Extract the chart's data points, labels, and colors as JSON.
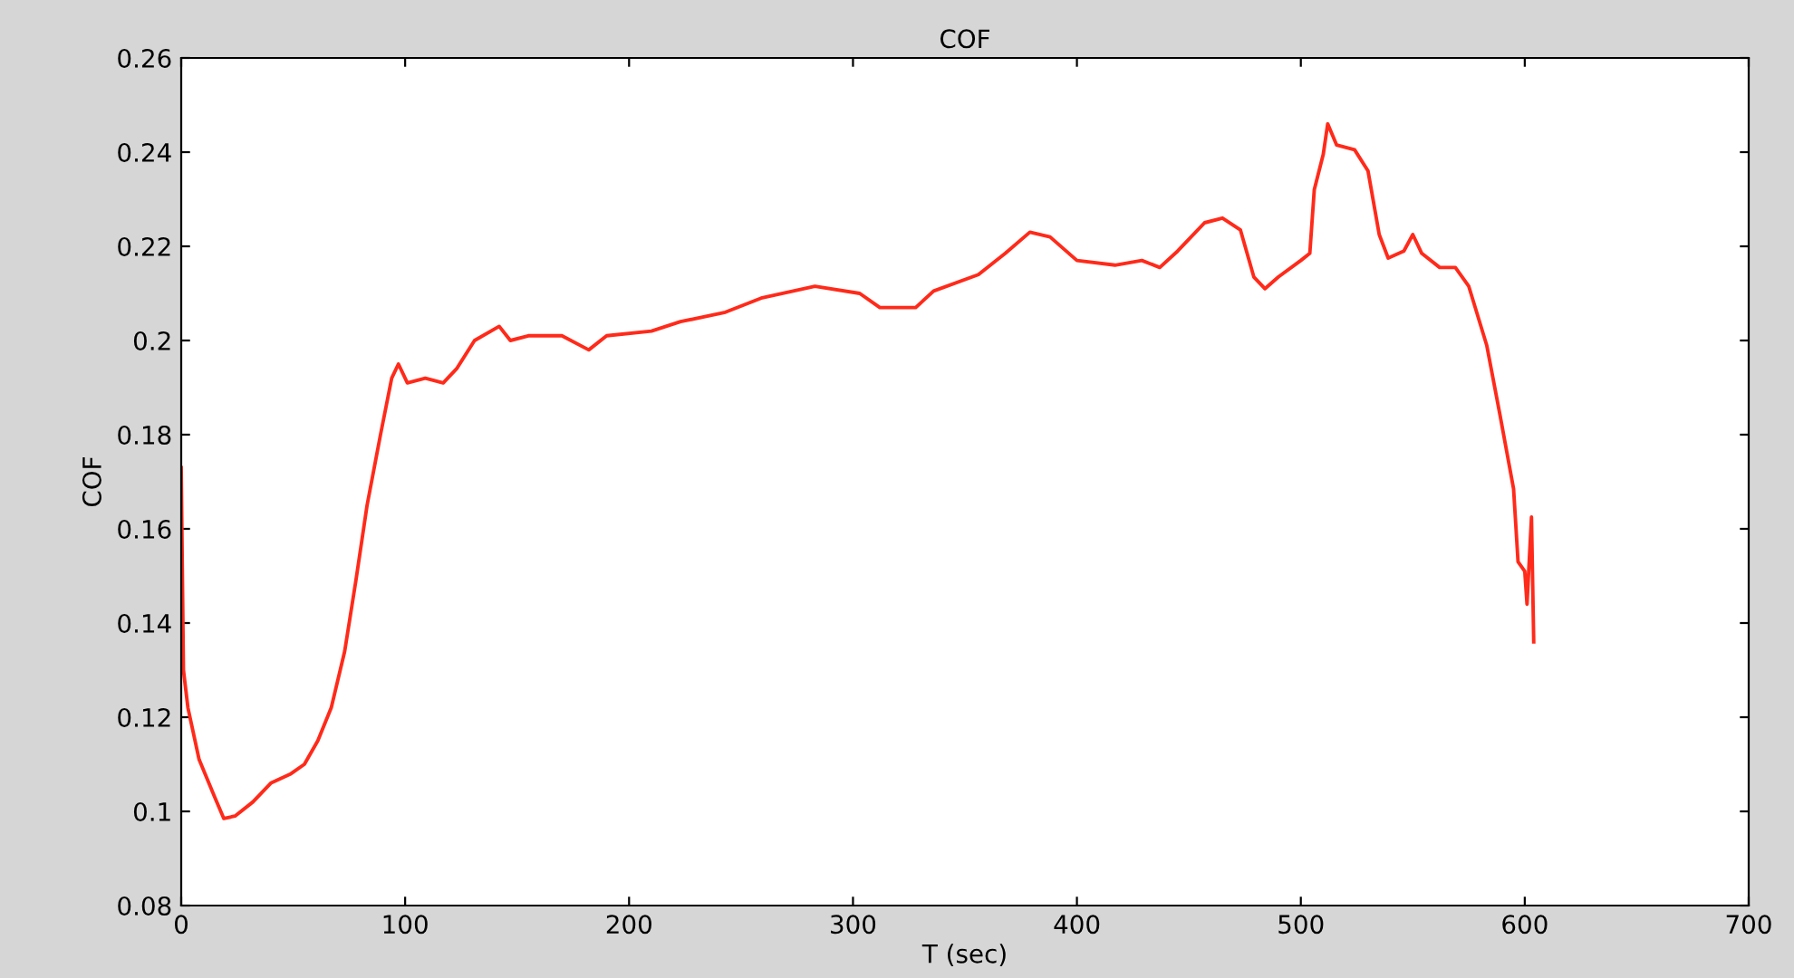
{
  "chart_data": {
    "type": "line",
    "title": "COF",
    "xlabel": "T (sec)",
    "ylabel": "COF",
    "x": [
      0,
      1,
      3,
      8,
      15,
      19,
      24,
      32,
      40,
      49,
      55,
      61,
      67,
      73,
      78,
      83,
      89,
      94,
      97,
      101,
      109,
      117,
      123,
      131,
      142,
      147,
      155,
      170,
      182,
      190,
      210,
      223,
      243,
      259,
      283,
      303,
      312,
      328,
      336,
      356,
      368,
      379,
      388,
      400,
      417,
      429,
      437,
      445,
      457,
      465,
      473,
      479,
      484,
      490,
      500,
      504,
      506,
      510,
      512,
      516,
      524,
      530,
      535,
      539,
      546,
      550,
      554,
      562,
      569,
      575,
      583,
      589,
      595,
      597,
      600,
      601,
      603,
      604
    ],
    "series": [
      {
        "color": "#ff2a1a",
        "values": [
          0.173,
          0.13,
          0.122,
          0.111,
          0.103,
          0.0985,
          0.099,
          0.102,
          0.106,
          0.108,
          0.11,
          0.115,
          0.122,
          0.134,
          0.149,
          0.165,
          0.18,
          0.192,
          0.195,
          0.191,
          0.192,
          0.191,
          0.194,
          0.2,
          0.203,
          0.2,
          0.201,
          0.201,
          0.198,
          0.201,
          0.202,
          0.204,
          0.206,
          0.209,
          0.2115,
          0.21,
          0.207,
          0.207,
          0.2105,
          0.214,
          0.2185,
          0.223,
          0.222,
          0.217,
          0.216,
          0.217,
          0.2155,
          0.219,
          0.225,
          0.226,
          0.2235,
          0.2135,
          0.211,
          0.2135,
          0.217,
          0.2185,
          0.232,
          0.2395,
          0.246,
          0.2415,
          0.2405,
          0.236,
          0.2225,
          0.2175,
          0.219,
          0.2225,
          0.2185,
          0.2155,
          0.2155,
          0.2115,
          0.199,
          0.184,
          0.1685,
          0.153,
          0.151,
          0.144,
          0.1625,
          0.136
        ]
      }
    ],
    "xlim": [
      0,
      700
    ],
    "xticks": [
      0,
      100,
      200,
      300,
      400,
      500,
      600,
      700
    ],
    "ylim": [
      0.08,
      0.26
    ],
    "yticks": [
      0.08,
      0.1,
      0.12,
      0.14,
      0.16,
      0.18,
      0.2,
      0.22,
      0.24,
      0.26
    ],
    "grid": false,
    "legend": false
  }
}
